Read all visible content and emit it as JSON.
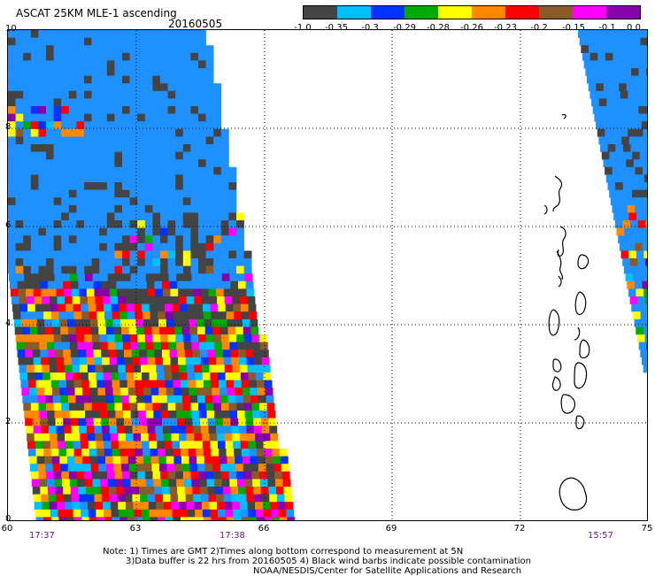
{
  "header": {
    "title": "ASCAT 25KM MLE-1 ascending",
    "date": "20160505"
  },
  "colorbar": {
    "colors": [
      "#444444",
      "#00bfff",
      "#0033ff",
      "#00aa00",
      "#ffff00",
      "#ff8800",
      "#ff0000",
      "#8b5a2b",
      "#ff00ff",
      "#8800aa"
    ],
    "labels": [
      "-1.0",
      "-0.35",
      "-0.3",
      "-0.29",
      "-0.28",
      "-0.26",
      "-0.23",
      "-0.2",
      "-0.15",
      "-0.1",
      "0.0"
    ]
  },
  "axes": {
    "y_labels": [
      "10",
      "8",
      "6",
      "4",
      "2",
      "0"
    ],
    "x_labels": [
      "60",
      "63",
      "66",
      "69",
      "72",
      "75"
    ]
  },
  "times": [
    "17:37",
    "17:38",
    "15:57"
  ],
  "notes": {
    "line1": "Note: 1) Times are GMT 2)Times along bottom correspond to measurement at 5N",
    "line2": "3)Data buffer is 22 hrs from 20160505 4) Black wind barbs indicate possible contamination",
    "line3": "NOAA/NESDIS/Center for Satellite Applications and Research"
  }
}
